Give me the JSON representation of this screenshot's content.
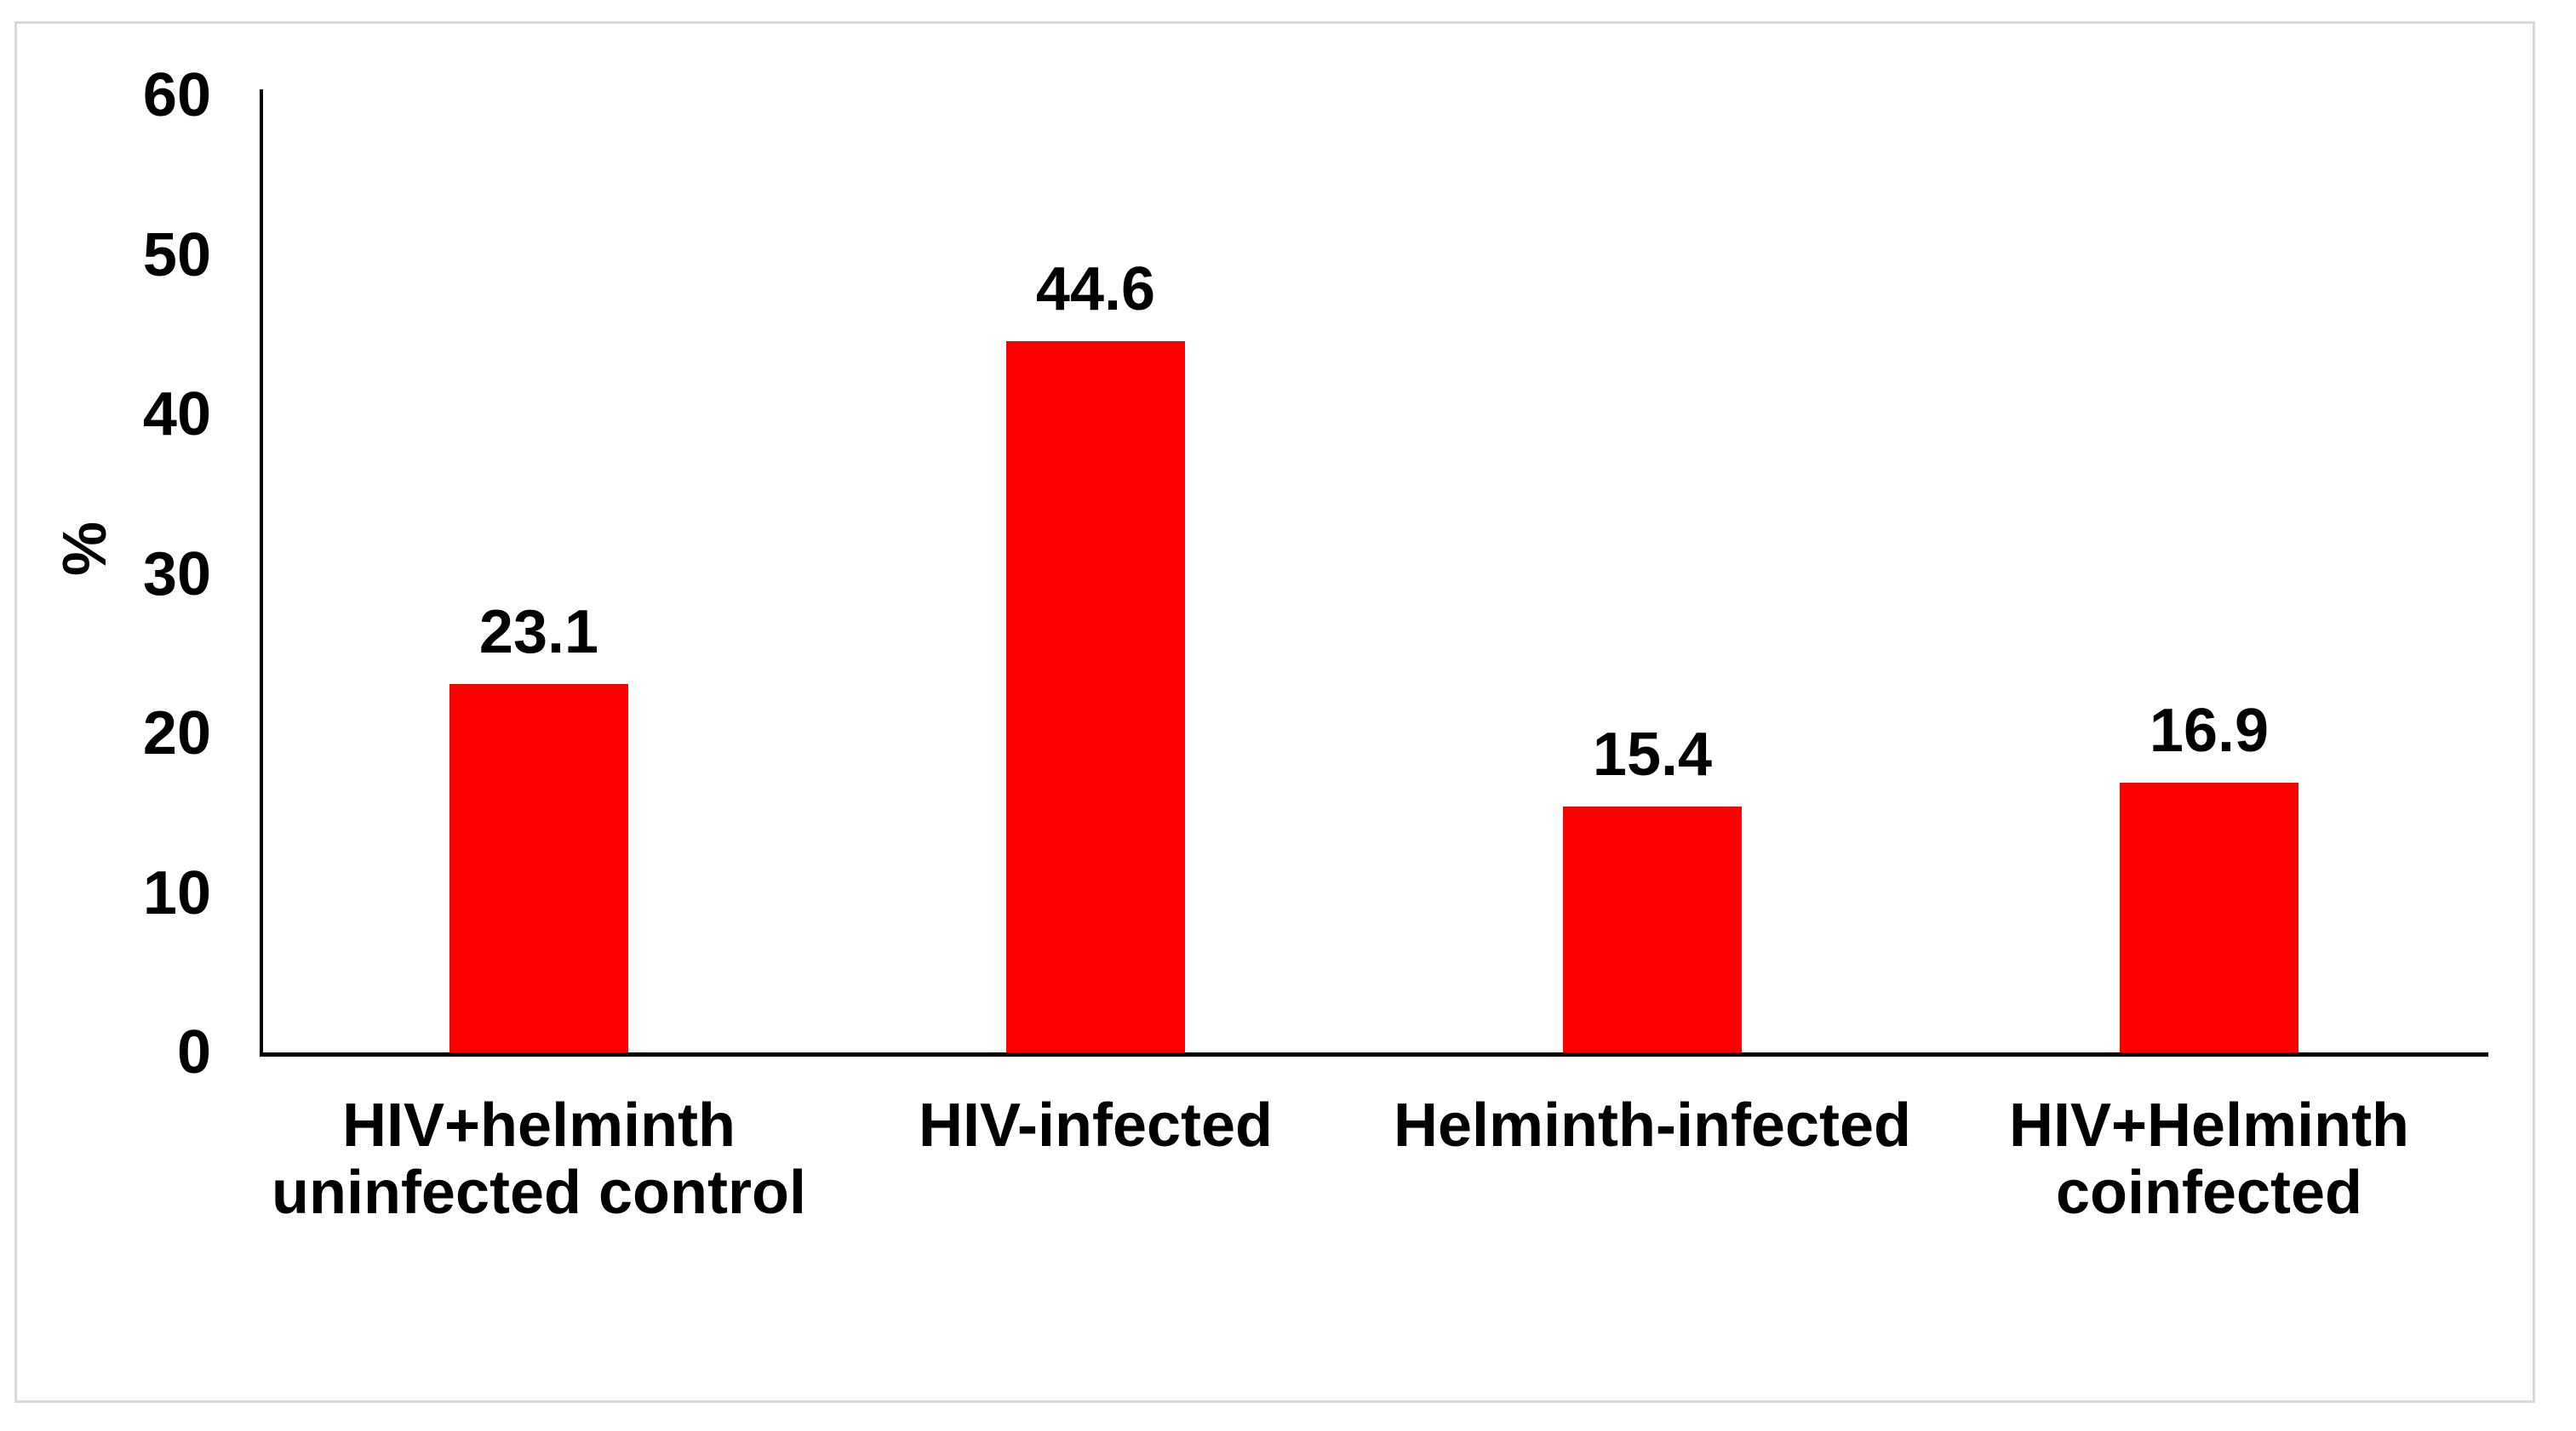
{
  "figure": {
    "background_color": "#ffffff",
    "border_color": "#d9d9d9",
    "axis_color": "#000000",
    "text_color": "#000000"
  },
  "chart_data": {
    "type": "bar",
    "title": "",
    "xlabel": "",
    "ylabel": "%",
    "categories": [
      "HIV+helminth\nuninfected control",
      "HIV-infected",
      "Helminth-infected",
      "HIV+Helminth\ncoinfected"
    ],
    "values": [
      23.1,
      44.6,
      15.4,
      16.9
    ],
    "value_labels": [
      "23.1",
      "44.6",
      "15.4",
      "16.9"
    ],
    "ylim": [
      0,
      60
    ],
    "yticks": [
      60,
      50,
      40,
      30,
      20,
      10,
      0
    ],
    "bar_color": "#fe0000",
    "grid": false,
    "legend": false,
    "legend_position": "none"
  }
}
